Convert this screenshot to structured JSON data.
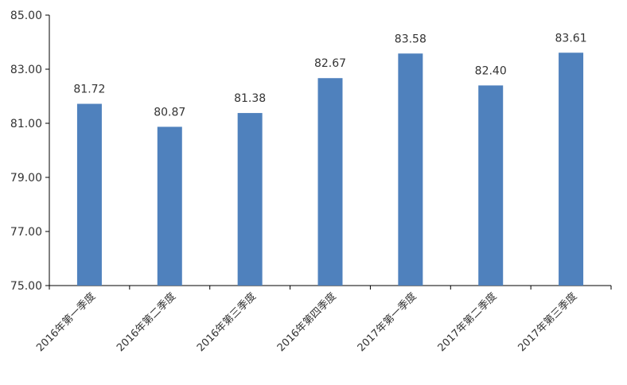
{
  "chart_data": {
    "type": "bar",
    "categories": [
      "2016年第一季度",
      "2016年第二季度",
      "2016年第三季度",
      "2016年第四季度",
      "2017年第一季度",
      "2017年第二季度",
      "2017年第三季度"
    ],
    "values": [
      81.72,
      80.87,
      81.38,
      82.67,
      83.58,
      82.4,
      83.61
    ],
    "value_labels": [
      "81.72",
      "80.87",
      "81.38",
      "82.67",
      "83.58",
      "82.40",
      "83.61"
    ],
    "yticks": [
      "75.00",
      "77.00",
      "79.00",
      "81.00",
      "83.00",
      "85.00"
    ],
    "ylim": [
      75,
      85
    ],
    "title": "",
    "xlabel": "",
    "ylabel": "",
    "grid": false,
    "legend": "none",
    "bar_color": "#4F81BD"
  }
}
